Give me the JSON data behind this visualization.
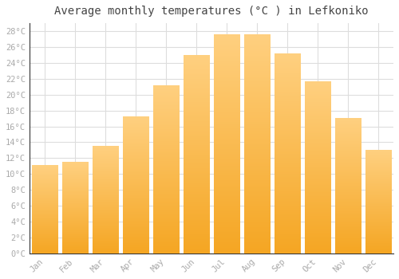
{
  "title": "Average monthly temperatures (°C ) in Lefkoniko",
  "months": [
    "Jan",
    "Feb",
    "Mar",
    "Apr",
    "May",
    "Jun",
    "Jul",
    "Aug",
    "Sep",
    "Oct",
    "Nov",
    "Dec"
  ],
  "values": [
    11.1,
    11.5,
    13.5,
    17.2,
    21.1,
    25.0,
    27.6,
    27.6,
    25.2,
    21.6,
    17.0,
    13.0
  ],
  "bar_color_bottom": "#F5A623",
  "bar_color_top": "#FFD080",
  "background_color": "#ffffff",
  "grid_color": "#dddddd",
  "tick_color": "#aaaaaa",
  "title_color": "#444444",
  "spine_color": "#333333",
  "ylim_max": 29,
  "ytick_step": 2,
  "title_fontsize": 10,
  "tick_fontsize": 7.5,
  "font_family": "monospace"
}
